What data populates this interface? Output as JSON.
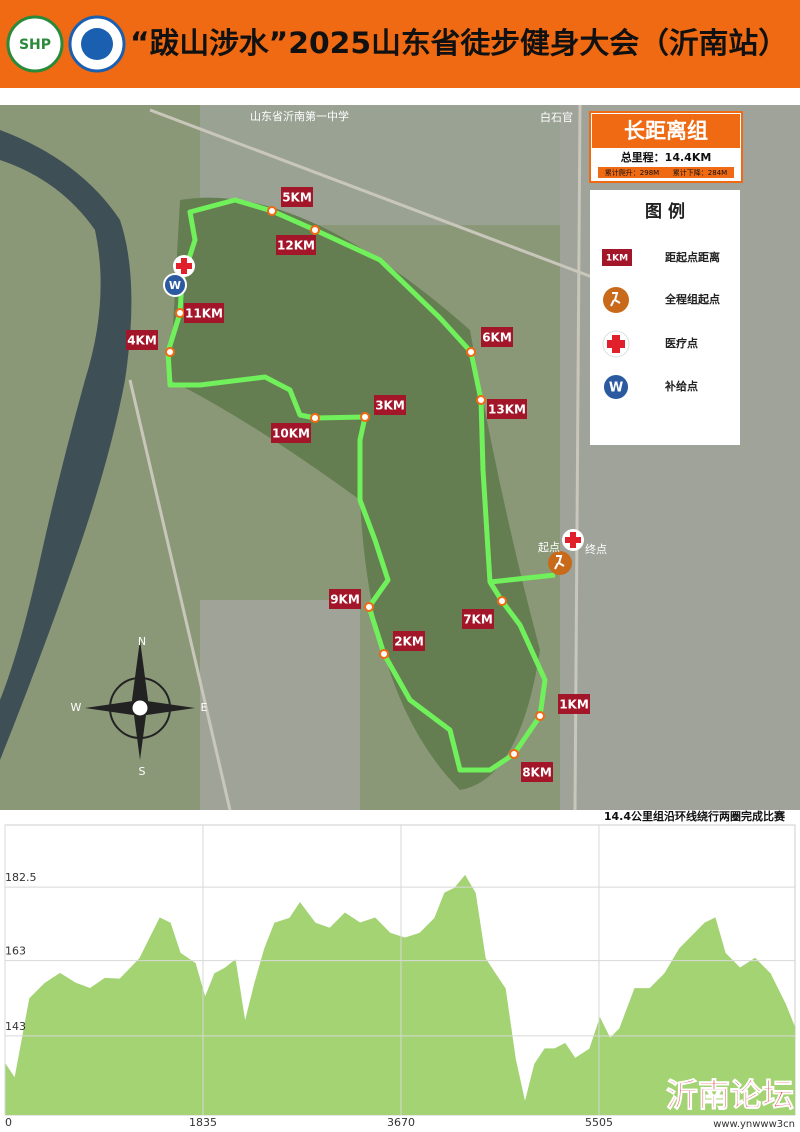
{
  "header": {
    "title": "“跋山涉水”2025山东省徒步健身大会（沂南站）"
  },
  "map": {
    "place_labels": [
      "山东省沂南第一中学",
      "白石官"
    ],
    "start_label": "起点",
    "finish_label": "终点",
    "km_labels": [
      "5KM",
      "12KM",
      "6KM",
      "13KM",
      "3KM",
      "10KM",
      "11KM",
      "4KM",
      "9KM",
      "2KM",
      "7KM",
      "1KM",
      "8KM"
    ],
    "medical_icon": "✚",
    "supply_icon": "W",
    "compass": {
      "n": "N",
      "s": "S",
      "w": "W",
      "e": "E"
    }
  },
  "info_box": {
    "title": "长距离组",
    "total": "总里程：14.4KM",
    "ascent": "累计爬升：298M",
    "descent": "累计下降：284M"
  },
  "legend": {
    "title": "图 例",
    "items": [
      {
        "icon": "1KM",
        "label": "距起点距离"
      },
      {
        "label": "全程组起点"
      },
      {
        "label": "医疗点"
      },
      {
        "icon": "W",
        "label": "补给点"
      }
    ]
  },
  "chart_data": {
    "type": "area",
    "title": "14.4公里组沿环线绕行两圈完成比赛",
    "color": "#a3d373",
    "x": [
      0,
      93,
      232,
      371,
      510,
      649,
      788,
      927,
      1066,
      1251,
      1437,
      1529,
      1622,
      1761,
      1854,
      1946,
      2039,
      2132,
      2224,
      2317,
      2410,
      2502,
      2641,
      2734,
      2873,
      3012,
      3151,
      3290,
      3429,
      3568,
      3707,
      3846,
      3985,
      4078,
      4171,
      4263,
      4356,
      4449,
      4541,
      4634,
      4727,
      4819,
      4912,
      5005,
      5097,
      5190,
      5283,
      5422,
      5515,
      5607,
      5700,
      5839,
      5978,
      6117,
      6256,
      6395,
      6488,
      6580,
      6673,
      6812,
      6951,
      7090,
      7229,
      7322
    ],
    "values": [
      135.5,
      131.5,
      152.9,
      156.9,
      159.5,
      157,
      155.5,
      158.2,
      158,
      163.5,
      174.2,
      172.9,
      164.9,
      162.2,
      152.9,
      159.5,
      160.9,
      163,
      146.2,
      156.9,
      166.2,
      172.9,
      174.2,
      178.2,
      172.9,
      171.5,
      175.5,
      172.9,
      174.2,
      170.2,
      168.9,
      170.2,
      174.2,
      180.9,
      182.2,
      185.4,
      180.9,
      163.5,
      159.5,
      155.5,
      136.9,
      124.9,
      135.5,
      139.5,
      139.5,
      140.9,
      136.9,
      139.5,
      147.5,
      142.2,
      144.9,
      155.5,
      155.5,
      159.5,
      166.2,
      170.2,
      172.9,
      174.2,
      164.9,
      160.9,
      163.5,
      159.5,
      151.5,
      144.9
    ],
    "xlim": [
      0,
      7322
    ],
    "ylim": [
      122,
      199
    ],
    "xticks": [
      0,
      1835,
      3670,
      5505
    ],
    "yticks": [
      143,
      163,
      182.5
    ],
    "grid": true
  },
  "watermark": {
    "text": "沂南论坛",
    "url": "www.ynwww3cn"
  }
}
